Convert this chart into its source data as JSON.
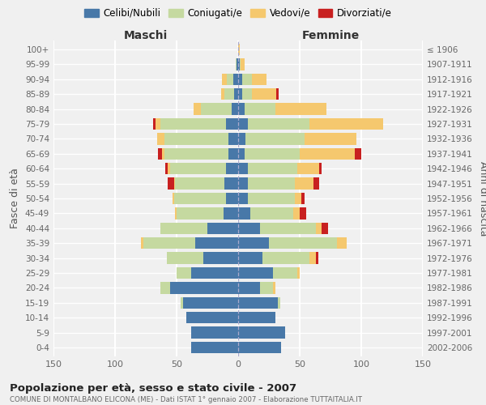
{
  "age_groups": [
    "0-4",
    "5-9",
    "10-14",
    "15-19",
    "20-24",
    "25-29",
    "30-34",
    "35-39",
    "40-44",
    "45-49",
    "50-54",
    "55-59",
    "60-64",
    "65-69",
    "70-74",
    "75-79",
    "80-84",
    "85-89",
    "90-94",
    "95-99",
    "100+"
  ],
  "birth_years": [
    "2002-2006",
    "1997-2001",
    "1992-1996",
    "1987-1991",
    "1982-1986",
    "1977-1981",
    "1972-1976",
    "1967-1971",
    "1962-1966",
    "1957-1961",
    "1952-1956",
    "1947-1951",
    "1942-1946",
    "1937-1941",
    "1932-1936",
    "1927-1931",
    "1922-1926",
    "1917-1921",
    "1912-1916",
    "1907-1911",
    "≤ 1906"
  ],
  "males": {
    "celibi": [
      38,
      38,
      42,
      45,
      55,
      38,
      28,
      35,
      25,
      12,
      10,
      11,
      10,
      8,
      8,
      10,
      5,
      3,
      4,
      1,
      0
    ],
    "coniugati": [
      0,
      0,
      0,
      2,
      8,
      12,
      30,
      42,
      38,
      38,
      42,
      40,
      45,
      52,
      52,
      53,
      25,
      8,
      5,
      1,
      0
    ],
    "vedovi": [
      0,
      0,
      0,
      0,
      0,
      0,
      0,
      2,
      0,
      1,
      1,
      1,
      2,
      2,
      6,
      4,
      6,
      3,
      4,
      0,
      0
    ],
    "divorziati": [
      0,
      0,
      0,
      0,
      0,
      0,
      0,
      0,
      0,
      0,
      0,
      5,
      2,
      3,
      0,
      2,
      0,
      0,
      0,
      0,
      0
    ]
  },
  "females": {
    "nubili": [
      35,
      38,
      30,
      32,
      18,
      28,
      20,
      25,
      18,
      10,
      8,
      8,
      8,
      5,
      6,
      8,
      5,
      3,
      3,
      1,
      0
    ],
    "coniugate": [
      0,
      0,
      0,
      2,
      10,
      20,
      38,
      55,
      45,
      35,
      38,
      38,
      40,
      45,
      48,
      50,
      25,
      8,
      8,
      1,
      0
    ],
    "vedove": [
      0,
      0,
      0,
      0,
      2,
      2,
      5,
      8,
      5,
      5,
      5,
      15,
      18,
      45,
      42,
      60,
      42,
      20,
      12,
      3,
      1
    ],
    "divorziate": [
      0,
      0,
      0,
      0,
      0,
      0,
      2,
      0,
      5,
      5,
      3,
      5,
      2,
      5,
      0,
      0,
      0,
      2,
      0,
      0,
      0
    ]
  },
  "colors": {
    "celibi_nubili": "#4878a8",
    "coniugati": "#c5d9a0",
    "vedovi": "#f5c86e",
    "divorziati": "#c82020"
  },
  "title": "Popolazione per età, sesso e stato civile - 2007",
  "subtitle": "COMUNE DI MONTALBANO ELICONA (ME) - Dati ISTAT 1° gennaio 2007 - Elaborazione TUTTAITALIA.IT",
  "xlabel_left": "Maschi",
  "xlabel_right": "Femmine",
  "ylabel_left": "Fasce di età",
  "ylabel_right": "Anni di nascita",
  "xlim": 150,
  "legend_labels": [
    "Celibi/Nubili",
    "Coniugati/e",
    "Vedovi/e",
    "Divorziati/e"
  ],
  "background_color": "#f0f0f0",
  "grid_color": "#ffffff"
}
